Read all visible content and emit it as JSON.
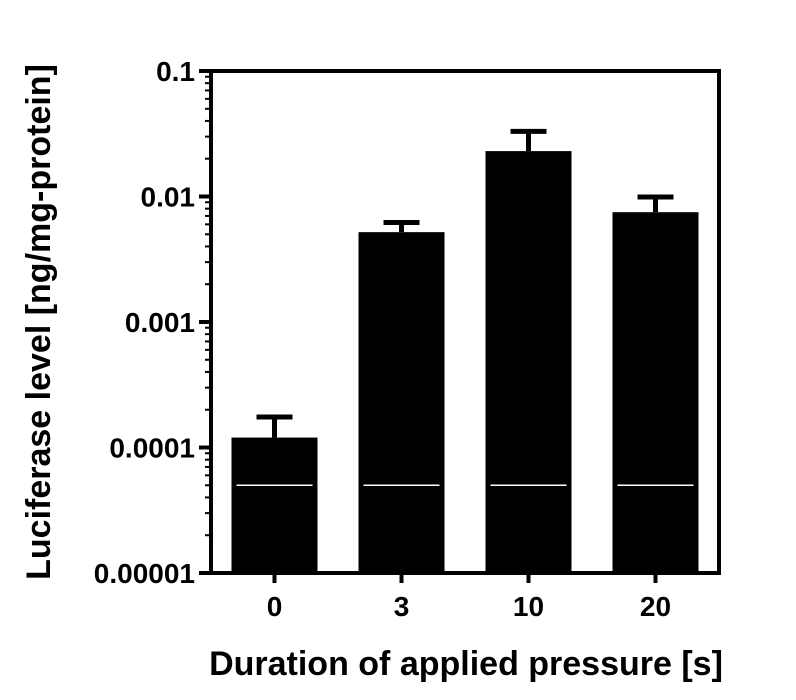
{
  "chart_data": {
    "type": "bar",
    "title": "",
    "xlabel": "Duration of applied pressure [s]",
    "ylabel": "Luciferase level [ng/mg-protein]",
    "yscale": "log",
    "ylim": [
      1e-05,
      0.1
    ],
    "ytick_values": [
      1e-05,
      0.0001,
      0.001,
      0.01,
      0.1
    ],
    "ytick_labels": [
      "0.00001",
      "0.0001",
      "0.001",
      "0.01",
      "0.1"
    ],
    "categories": [
      "0",
      "3",
      "10",
      "20"
    ],
    "values": [
      0.00012,
      0.0052,
      0.023,
      0.0075
    ],
    "error_upper": [
      0.000175,
      0.0062,
      0.033,
      0.0099
    ],
    "reference_line_value": 5e-05,
    "bar_color": "#000000",
    "reference_line_color": "#ffffff",
    "grid": false,
    "legend": "none"
  }
}
